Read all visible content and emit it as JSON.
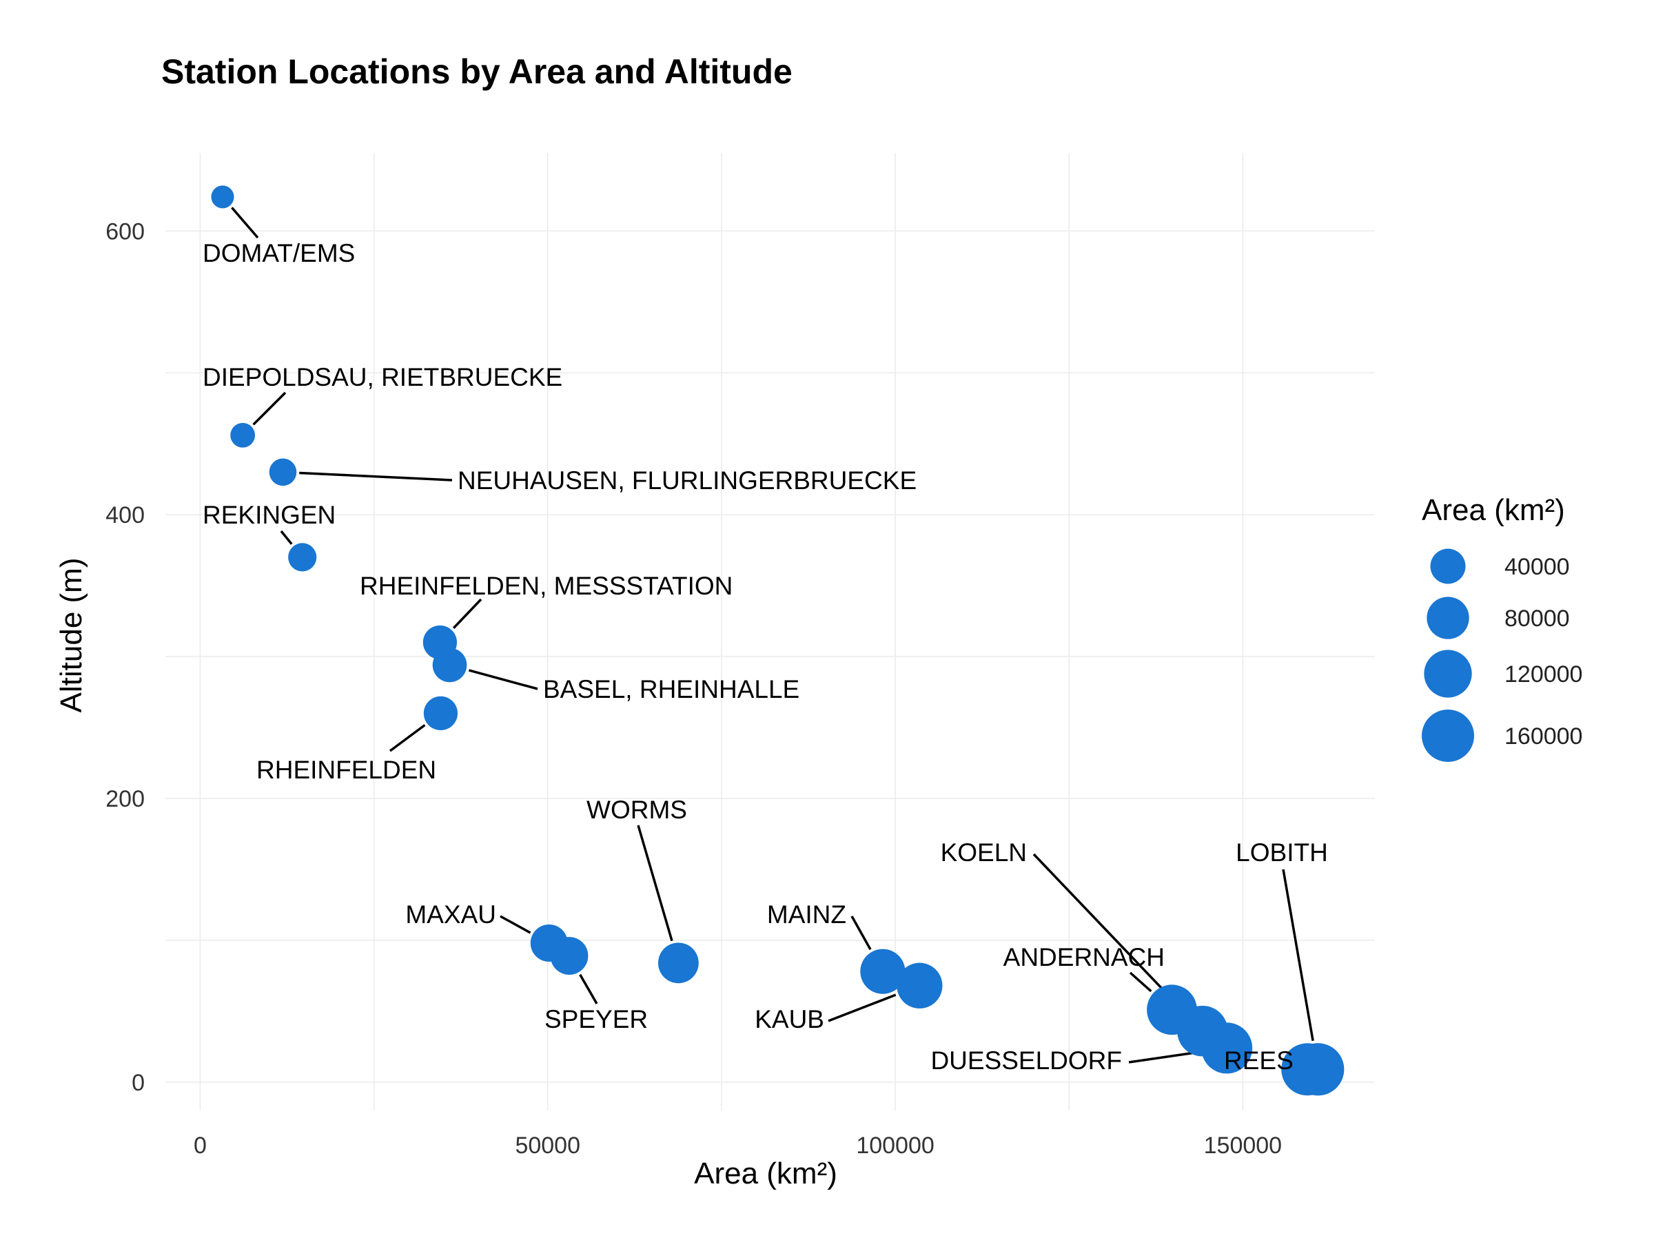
{
  "chart_data": {
    "type": "scatter",
    "title": "Station Locations by Area and Altitude",
    "xlabel": "Area (km²)",
    "ylabel": "Altitude (m)",
    "xlim": [
      -5000,
      169000
    ],
    "ylim": [
      -20,
      655
    ],
    "x_ticks": [
      0,
      50000,
      100000,
      150000
    ],
    "y_ticks": [
      0,
      200,
      400,
      600
    ],
    "grid": true,
    "point_color": "#1976D2",
    "size_variable": "Area (km²)",
    "legend": {
      "title": "Area (km²)",
      "placement": "right",
      "values": [
        40000,
        80000,
        120000,
        160000
      ]
    },
    "points": [
      {
        "name": "DOMAT/EMS",
        "x": 3230,
        "y": 624
      },
      {
        "name": "DIEPOLDSAU, RIETBRUECKE",
        "x": 6120,
        "y": 456
      },
      {
        "name": "NEUHAUSEN, FLURLINGERBRUECKE",
        "x": 11900,
        "y": 430
      },
      {
        "name": "REKINGEN",
        "x": 14700,
        "y": 370
      },
      {
        "name": "RHEINFELDEN, MESSSTATION",
        "x": 34500,
        "y": 310
      },
      {
        "name": "BASEL, RHEINHALLE",
        "x": 35900,
        "y": 294
      },
      {
        "name": "RHEINFELDEN",
        "x": 34600,
        "y": 260
      },
      {
        "name": "MAXAU",
        "x": 50200,
        "y": 98
      },
      {
        "name": "SPEYER",
        "x": 53100,
        "y": 89
      },
      {
        "name": "WORMS",
        "x": 68800,
        "y": 84
      },
      {
        "name": "MAINZ",
        "x": 98200,
        "y": 78
      },
      {
        "name": "KAUB",
        "x": 103500,
        "y": 68
      },
      {
        "name": "ANDERNACH",
        "x": 139800,
        "y": 51
      },
      {
        "name": "KOELN",
        "x": 144200,
        "y": 36
      },
      {
        "name": "DUESSELDORF",
        "x": 147700,
        "y": 24
      },
      {
        "name": "REES",
        "x": 159300,
        "y": 9
      },
      {
        "name": "LOBITH",
        "x": 160800,
        "y": 9
      }
    ]
  }
}
